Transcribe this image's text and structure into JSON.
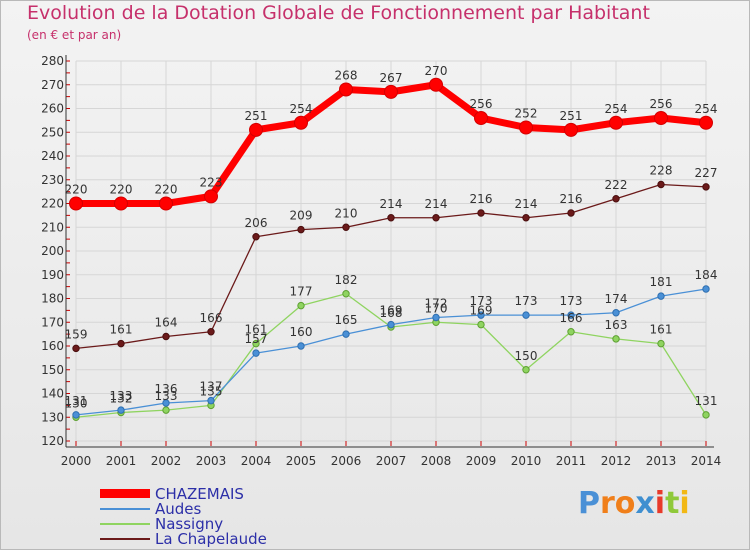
{
  "chart_data": {
    "type": "line",
    "title": "Evolution de la Dotation Globale de Fonctionnement par Habitant",
    "subtitle": "(en € et par an)",
    "xlabel": "",
    "ylabel": "",
    "x": [
      "2000",
      "2001",
      "2002",
      "2003",
      "2004",
      "2005",
      "2006",
      "2007",
      "2008",
      "2009",
      "2010",
      "2011",
      "2012",
      "2013",
      "2014"
    ],
    "ylim": [
      120,
      280
    ],
    "yticks": [
      120,
      130,
      140,
      150,
      160,
      170,
      180,
      190,
      200,
      210,
      220,
      230,
      240,
      250,
      260,
      270,
      280
    ],
    "grid": true,
    "legend_position": "bottom-left",
    "series": [
      {
        "name": "CHAZEMAIS",
        "color": "#ff0000",
        "values": [
          220,
          220,
          220,
          223,
          251,
          254,
          268,
          267,
          270,
          256,
          252,
          251,
          254,
          256,
          254
        ]
      },
      {
        "name": "Audes",
        "color": "#4a90d6",
        "values": [
          131,
          133,
          136,
          137,
          157,
          160,
          165,
          169,
          172,
          173,
          173,
          173,
          174,
          181,
          184
        ]
      },
      {
        "name": "Nassigny",
        "color": "#8fd460",
        "values": [
          130,
          132,
          133,
          135,
          161,
          177,
          182,
          168,
          170,
          169,
          150,
          166,
          163,
          161,
          131
        ]
      },
      {
        "name": "La Chapelaude",
        "color": "#6b1a1a",
        "values": [
          159,
          161,
          164,
          166,
          206,
          209,
          210,
          214,
          214,
          216,
          214,
          216,
          222,
          228,
          227
        ]
      }
    ]
  },
  "logo": {
    "text": "Proxiti",
    "letters": [
      "P",
      "r",
      "o",
      "x",
      "i",
      "t",
      "i"
    ],
    "colors": [
      "#4a90d6",
      "#f07f1a",
      "#f07f1a",
      "#3f8fd0",
      "#e83a2a",
      "#8fc93a",
      "#f2b814"
    ]
  }
}
